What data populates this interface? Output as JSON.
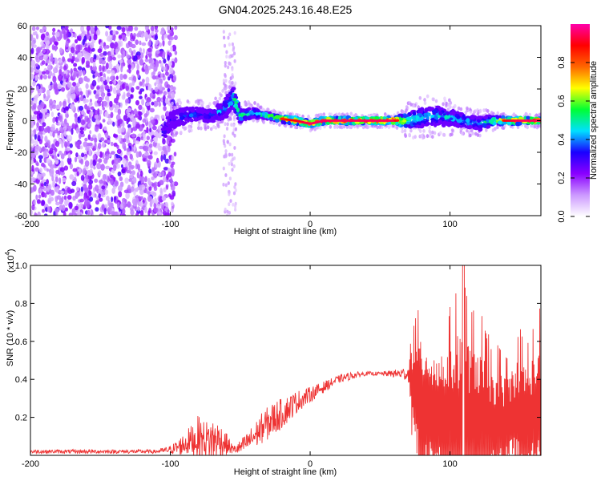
{
  "chart_data": [
    {
      "type": "heatmap",
      "title": "GN04.2025.243.16.48.E25",
      "xlabel": "Height of straight line (km)",
      "ylabel": "Frequency (Hz)",
      "xlim": [
        -200,
        165
      ],
      "ylim": [
        -60,
        60
      ],
      "xticks": [
        -200,
        -100,
        0,
        100
      ],
      "yticks": [
        60,
        40,
        20,
        0,
        -20,
        -40,
        -60
      ],
      "colorbar": {
        "label": "Normalized spectral amplitude",
        "range": [
          0,
          1
        ],
        "ticks": [
          "0.0",
          "0.2",
          "0.4",
          "0.6",
          "0.8"
        ],
        "colors": [
          "#ffffff",
          "#cc99ff",
          "#8a00ff",
          "#1a00ff",
          "#00e0ff",
          "#00ff33",
          "#ffff00",
          "#ff6600",
          "#ff0000",
          "#ff00aa"
        ]
      },
      "ridge": {
        "x": [
          -105,
          -100,
          -90,
          -80,
          -70,
          -60,
          -55,
          -50,
          -40,
          -30,
          -20,
          -10,
          0,
          10,
          20,
          40,
          60,
          70,
          80,
          90,
          100,
          110,
          120,
          130,
          140,
          150,
          160
        ],
        "freq": [
          -8,
          0,
          3,
          4,
          3,
          8,
          15,
          3,
          5,
          3,
          1,
          0,
          -2,
          0,
          0,
          0,
          0,
          0,
          2,
          3,
          2,
          0,
          -2,
          0,
          0,
          0,
          0
        ],
        "amplitude": [
          0.4,
          0.35,
          0.4,
          0.4,
          0.4,
          0.5,
          0.6,
          0.6,
          0.5,
          0.6,
          0.85,
          0.9,
          0.95,
          0.95,
          0.95,
          0.95,
          0.95,
          0.6,
          0.5,
          0.5,
          0.5,
          0.5,
          0.5,
          0.6,
          0.9,
          0.95,
          0.95
        ],
        "spread_hz": [
          4,
          5,
          5,
          4,
          4,
          6,
          6,
          4,
          3,
          2,
          2,
          2,
          2,
          2,
          2,
          2,
          2,
          5,
          6,
          6,
          5,
          4,
          4,
          3,
          2,
          2,
          2
        ]
      },
      "noise_region": {
        "x_range": [
          -200,
          -100
        ],
        "freq_range": [
          -60,
          60
        ],
        "amplitude": 0.25
      }
    },
    {
      "type": "line",
      "xlabel": "Height of straight line (km)",
      "ylabel": "SNR (10 * v/v)",
      "multiplier_label": "(x10",
      "multiplier_exp": "4",
      "multiplier_close": ")",
      "xlim": [
        -200,
        165
      ],
      "ylim": [
        0,
        1.0
      ],
      "xticks": [
        -200,
        -100,
        0,
        100
      ],
      "yticks": [
        "1.0",
        "0.8",
        "0.6",
        "0.4",
        "0.2"
      ],
      "color": "#ee3333",
      "envelope": {
        "x": [
          -200,
          -150,
          -110,
          -100,
          -95,
          -90,
          -85,
          -80,
          -75,
          -70,
          -65,
          -60,
          -55,
          -50,
          -45,
          -40,
          -35,
          -30,
          -25,
          -20,
          -15,
          -10,
          -5,
          0,
          10,
          20,
          30,
          40,
          50,
          60,
          70,
          72,
          75,
          80,
          85,
          90,
          95,
          100,
          105,
          110,
          115,
          120,
          125,
          130,
          135,
          140,
          145,
          150,
          155,
          160,
          165
        ],
        "base": [
          0.02,
          0.02,
          0.02,
          0.03,
          0.04,
          0.06,
          0.08,
          0.09,
          0.08,
          0.08,
          0.08,
          0.06,
          0.03,
          0.04,
          0.07,
          0.1,
          0.14,
          0.17,
          0.2,
          0.22,
          0.25,
          0.28,
          0.3,
          0.32,
          0.36,
          0.4,
          0.42,
          0.43,
          0.43,
          0.43,
          0.43,
          0.4,
          0.3,
          0.25,
          0.22,
          0.2,
          0.18,
          0.18,
          0.16,
          0.15,
          0.16,
          0.15,
          0.14,
          0.15,
          0.15,
          0.15,
          0.2,
          0.2,
          0.18,
          0.2,
          0.25
        ],
        "amp": [
          0.01,
          0.01,
          0.01,
          0.02,
          0.04,
          0.06,
          0.08,
          0.12,
          0.1,
          0.12,
          0.1,
          0.06,
          0.02,
          0.04,
          0.05,
          0.07,
          0.08,
          0.09,
          0.09,
          0.08,
          0.07,
          0.06,
          0.05,
          0.04,
          0.03,
          0.02,
          0.02,
          0.01,
          0.01,
          0.02,
          0.04,
          0.2,
          0.4,
          0.5,
          0.5,
          0.45,
          0.48,
          0.55,
          0.65,
          0.75,
          0.55,
          0.6,
          0.5,
          0.4,
          0.4,
          0.35,
          0.35,
          0.45,
          0.4,
          0.45,
          0.5
        ]
      }
    }
  ]
}
